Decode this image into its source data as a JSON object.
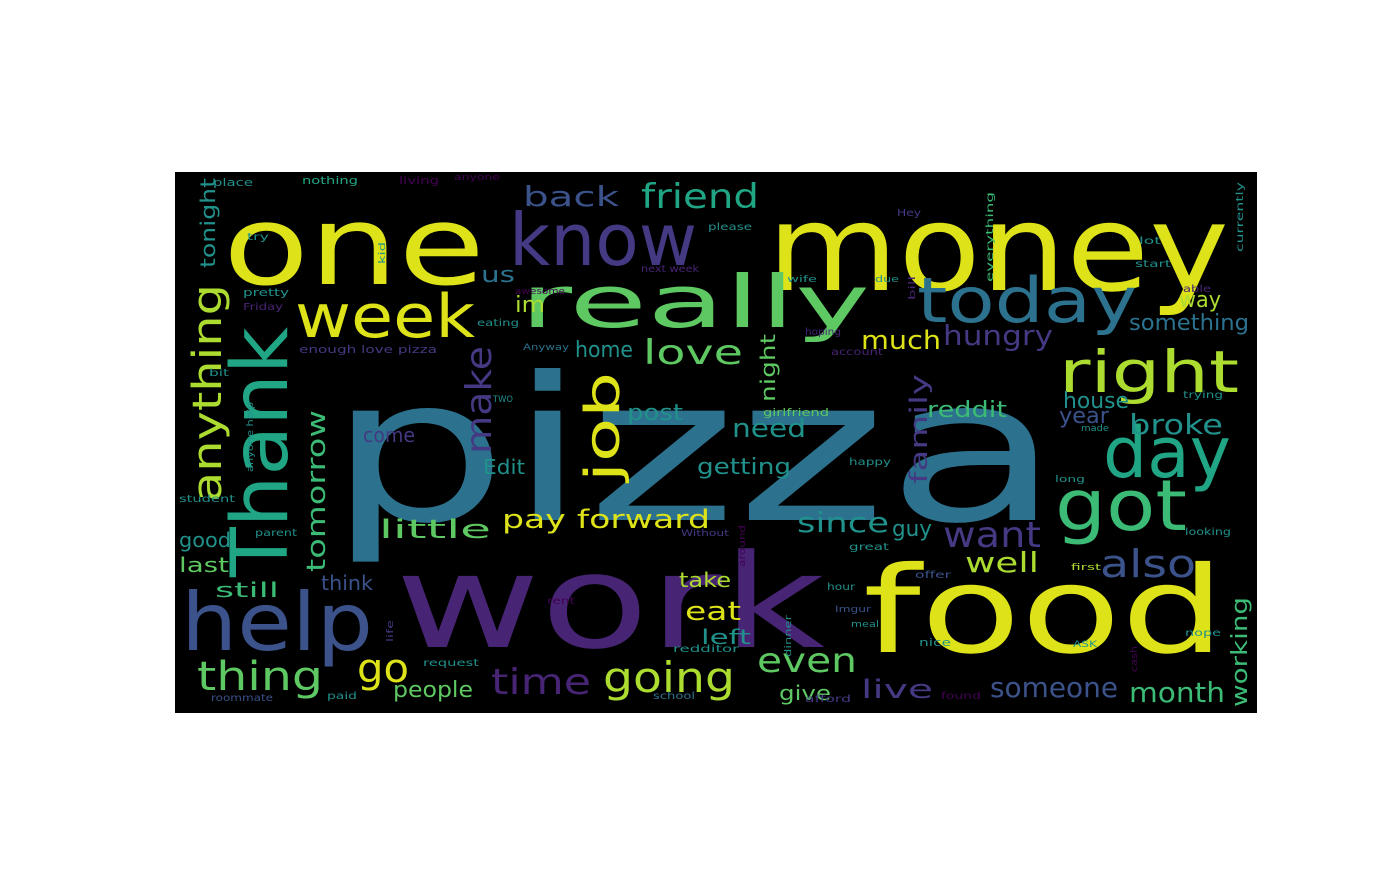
{
  "palette": {
    "background": "#000000",
    "yellow": "#dde318",
    "lime": "#addc30",
    "light_green": "#5ec962",
    "green": "#3bbb75",
    "teal_green": "#21a685",
    "teal": "#21918c",
    "cyan_blue": "#2c728e",
    "blue": "#3b528b",
    "indigo": "#443983",
    "purple": "#482475",
    "deep_purple": "#440154"
  },
  "words": [
    {
      "text": "pizza",
      "color": "cyan_blue"
    },
    {
      "text": "work",
      "color": "purple"
    },
    {
      "text": "money",
      "color": "yellow"
    },
    {
      "text": "food",
      "color": "yellow"
    },
    {
      "text": "one",
      "color": "yellow"
    },
    {
      "text": "Thank",
      "color": "teal_green"
    },
    {
      "text": "really",
      "color": "light_green"
    },
    {
      "text": "know",
      "color": "indigo"
    },
    {
      "text": "today",
      "color": "cyan_blue"
    },
    {
      "text": "week",
      "color": "yellow"
    },
    {
      "text": "help",
      "color": "blue"
    },
    {
      "text": "day",
      "color": "teal_green"
    },
    {
      "text": "got",
      "color": "green"
    },
    {
      "text": "right",
      "color": "lime"
    },
    {
      "text": "job",
      "color": "yellow"
    },
    {
      "text": "anything",
      "color": "lime"
    },
    {
      "text": "going",
      "color": "lime"
    },
    {
      "text": "thing",
      "color": "light_green"
    },
    {
      "text": "time",
      "color": "purple"
    },
    {
      "text": "friend",
      "color": "teal_green"
    },
    {
      "text": "go",
      "color": "yellow"
    },
    {
      "text": "make",
      "color": "indigo"
    },
    {
      "text": "love",
      "color": "light_green"
    },
    {
      "text": "back",
      "color": "blue"
    },
    {
      "text": "also",
      "color": "blue"
    },
    {
      "text": "want",
      "color": "indigo"
    },
    {
      "text": "even",
      "color": "light_green"
    },
    {
      "text": "pay forward",
      "color": "yellow"
    },
    {
      "text": "hungry",
      "color": "indigo"
    },
    {
      "text": "much",
      "color": "yellow"
    },
    {
      "text": "someone",
      "color": "blue"
    },
    {
      "text": "month",
      "color": "green"
    },
    {
      "text": "broke",
      "color": "teal"
    },
    {
      "text": "live",
      "color": "indigo"
    },
    {
      "text": "since",
      "color": "teal"
    },
    {
      "text": "well",
      "color": "lime"
    },
    {
      "text": "tomorrow",
      "color": "green"
    },
    {
      "text": "family",
      "color": "indigo"
    },
    {
      "text": "need",
      "color": "teal"
    },
    {
      "text": "little",
      "color": "light_green"
    },
    {
      "text": "eat",
      "color": "yellow"
    },
    {
      "text": "people",
      "color": "light_green"
    },
    {
      "text": "getting",
      "color": "teal"
    },
    {
      "text": "guy",
      "color": "teal"
    },
    {
      "text": "house",
      "color": "teal"
    },
    {
      "text": "year",
      "color": "blue"
    },
    {
      "text": "reddit",
      "color": "green"
    },
    {
      "text": "something",
      "color": "cyan_blue"
    },
    {
      "text": "way",
      "color": "lime"
    },
    {
      "text": "working",
      "color": "green"
    },
    {
      "text": "post",
      "color": "teal"
    },
    {
      "text": "home",
      "color": "teal"
    },
    {
      "text": "tonight",
      "color": "teal"
    },
    {
      "text": "night",
      "color": "light_green"
    },
    {
      "text": "Edit",
      "color": "teal"
    },
    {
      "text": "take",
      "color": "lime"
    },
    {
      "text": "left",
      "color": "teal"
    },
    {
      "text": "give",
      "color": "light_green"
    },
    {
      "text": "good",
      "color": "teal"
    },
    {
      "text": "last",
      "color": "light_green"
    },
    {
      "text": "still",
      "color": "green"
    },
    {
      "text": "think",
      "color": "blue"
    },
    {
      "text": "come",
      "color": "indigo"
    },
    {
      "text": "us",
      "color": "cyan_blue"
    },
    {
      "text": "im",
      "color": "lime"
    },
    {
      "text": "nothing",
      "color": "teal_green"
    },
    {
      "text": "place",
      "color": "teal"
    },
    {
      "text": "living",
      "color": "deep_purple"
    },
    {
      "text": "anyone",
      "color": "deep_purple"
    },
    {
      "text": "please",
      "color": "teal"
    },
    {
      "text": "Hey",
      "color": "indigo"
    },
    {
      "text": "try",
      "color": "teal"
    },
    {
      "text": "lot",
      "color": "teal"
    },
    {
      "text": "start",
      "color": "teal"
    },
    {
      "text": "able",
      "color": "purple"
    },
    {
      "text": "currently",
      "color": "teal"
    },
    {
      "text": "everything",
      "color": "green"
    },
    {
      "text": "next week",
      "color": "purple"
    },
    {
      "text": "pretty",
      "color": "teal"
    },
    {
      "text": "Friday",
      "color": "purple"
    },
    {
      "text": "enough love pizza",
      "color": "indigo"
    },
    {
      "text": "eating",
      "color": "teal"
    },
    {
      "text": "Anyway",
      "color": "cyan_blue"
    },
    {
      "text": "awesome",
      "color": "deep_purple"
    },
    {
      "text": "hoping",
      "color": "purple"
    },
    {
      "text": "account",
      "color": "purple"
    },
    {
      "text": "girlfriend",
      "color": "light_green"
    },
    {
      "text": "trying",
      "color": "teal"
    },
    {
      "text": "made",
      "color": "teal"
    },
    {
      "text": "happy",
      "color": "teal"
    },
    {
      "text": "long",
      "color": "teal"
    },
    {
      "text": "student",
      "color": "teal"
    },
    {
      "text": "parent",
      "color": "teal"
    },
    {
      "text": "great",
      "color": "teal"
    },
    {
      "text": "Without",
      "color": "indigo"
    },
    {
      "text": "around",
      "color": "deep_purple"
    },
    {
      "text": "looking",
      "color": "teal"
    },
    {
      "text": "hour",
      "color": "teal"
    },
    {
      "text": "offer",
      "color": "blue"
    },
    {
      "text": "first",
      "color": "lime"
    },
    {
      "text": "rent",
      "color": "deep_purple"
    },
    {
      "text": "dinner",
      "color": "teal"
    },
    {
      "text": "meal",
      "color": "teal"
    },
    {
      "text": "Imgur",
      "color": "blue"
    },
    {
      "text": "nice",
      "color": "teal"
    },
    {
      "text": "nope",
      "color": "teal"
    },
    {
      "text": "ASK",
      "color": "teal"
    },
    {
      "text": "request",
      "color": "teal"
    },
    {
      "text": "redditor",
      "color": "teal"
    },
    {
      "text": "roommate",
      "color": "blue"
    },
    {
      "text": "paid",
      "color": "teal"
    },
    {
      "text": "school",
      "color": "cyan_blue"
    },
    {
      "text": "afford",
      "color": "indigo"
    },
    {
      "text": "found",
      "color": "deep_purple"
    },
    {
      "text": "cash",
      "color": "deep_purple"
    },
    {
      "text": "bit",
      "color": "teal"
    },
    {
      "text": "anyone help",
      "color": "teal"
    },
    {
      "text": "due",
      "color": "teal"
    },
    {
      "text": "bill",
      "color": "purple"
    },
    {
      "text": "kid",
      "color": "teal"
    },
    {
      "text": "wife",
      "color": "teal"
    },
    {
      "text": "TWO",
      "color": "teal"
    },
    {
      "text": "life",
      "color": "indigo"
    }
  ]
}
